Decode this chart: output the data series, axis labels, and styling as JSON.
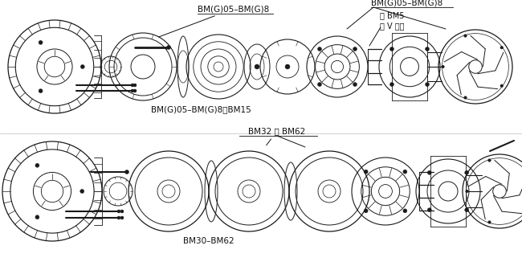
{
  "bg_color": "#ffffff",
  "fig_width": 6.5,
  "fig_height": 3.31,
  "dpi": 100,
  "top_label_center": "BM(G)05–BM(G)8",
  "top_label_right": "BM(G)05–BM(G)8",
  "top_label_sub1": "自 BM5",
  "top_label_sub2": "用 V 形环",
  "top_bottom_label": "BM(G)05–BM(G)8，BM15",
  "bot_label_center": "BM32 和 BM62",
  "bot_bottom_label": "BM30–BM62",
  "line_color": "#1a1a1a",
  "text_color": "#111111",
  "font_size_main": 7.5,
  "font_size_sub": 7.0
}
